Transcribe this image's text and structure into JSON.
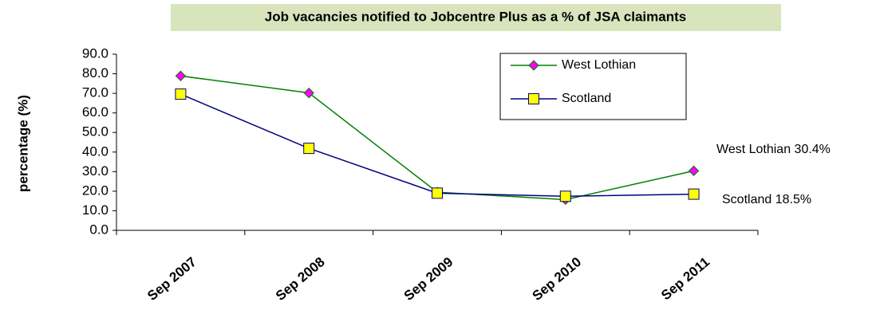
{
  "chart_data": {
    "type": "line",
    "title": "Job vacancies notified to Jobcentre Plus as a % of JSA claimants",
    "y_label": "percentage (%)",
    "categories": [
      "Sep 2007",
      "Sep 2008",
      "Sep 2009",
      "Sep 2010",
      "Sep 2011"
    ],
    "series": [
      {
        "name": "West Lothian",
        "color": "#008000",
        "marker_color": "#ff00ff",
        "marker": "diamond",
        "values": [
          78.9,
          70.2,
          19.5,
          15.7,
          30.4
        ]
      },
      {
        "name": "Scotland",
        "color": "#000080",
        "marker_color": "#ffff00",
        "marker": "square",
        "values": [
          69.6,
          41.9,
          19.0,
          17.4,
          18.5
        ]
      }
    ],
    "annotations": [
      "West Lothian 30.4%",
      "Scotland 18.5%"
    ],
    "ylim": [
      0,
      90
    ],
    "yticks": [
      {
        "value": 0,
        "label": "0.0"
      },
      {
        "value": 10,
        "label": "10.0"
      },
      {
        "value": 20,
        "label": "20.0"
      },
      {
        "value": 30,
        "label": "30.0"
      },
      {
        "value": 40,
        "label": "40.0"
      },
      {
        "value": 50,
        "label": "50.0"
      },
      {
        "value": 60,
        "label": "60.0"
      },
      {
        "value": 70,
        "label": "70.0"
      },
      {
        "value": 80,
        "label": "80.0"
      },
      {
        "value": 90,
        "label": "90.0"
      }
    ],
    "grid": false,
    "legend": "top-right"
  }
}
